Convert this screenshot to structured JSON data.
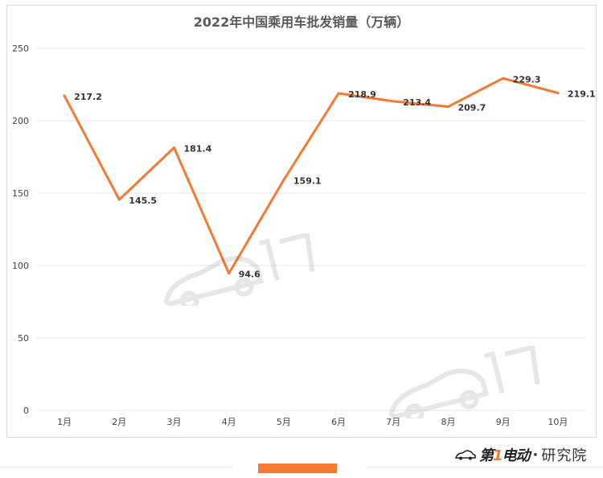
{
  "page": {
    "brand": {
      "logo_text_prefix": "第",
      "logo_text_one": "1",
      "logo_text_suffix": "电动",
      "dot": "·",
      "suffix": "研究院"
    },
    "colors": {
      "line": "#f47a33",
      "grid": "#e6e6e6",
      "text": "#333333",
      "axis_text": "#444444",
      "accent": "#f47a33"
    }
  },
  "chart_data": {
    "type": "line",
    "title": "2022年中国乘用车批发销量（万辆）",
    "categories": [
      "1月",
      "2月",
      "3月",
      "4月",
      "5月",
      "6月",
      "7月",
      "8月",
      "9月",
      "10月"
    ],
    "series": [
      {
        "values": [
          217.2,
          145.5,
          181.4,
          94.6,
          159.1,
          218.9,
          213.4,
          209.7,
          229.3,
          219.1
        ]
      }
    ],
    "data_labels": [
      "217.2",
      "145.5",
      "181.4",
      "94.6",
      "159.1",
      "218.9",
      "213.4",
      "209.7",
      "229.3",
      "219.1"
    ],
    "ylim": [
      0,
      250
    ],
    "yticks": [
      "0",
      "50",
      "100",
      "150",
      "200",
      "250"
    ],
    "grid": true,
    "legend": "none"
  }
}
